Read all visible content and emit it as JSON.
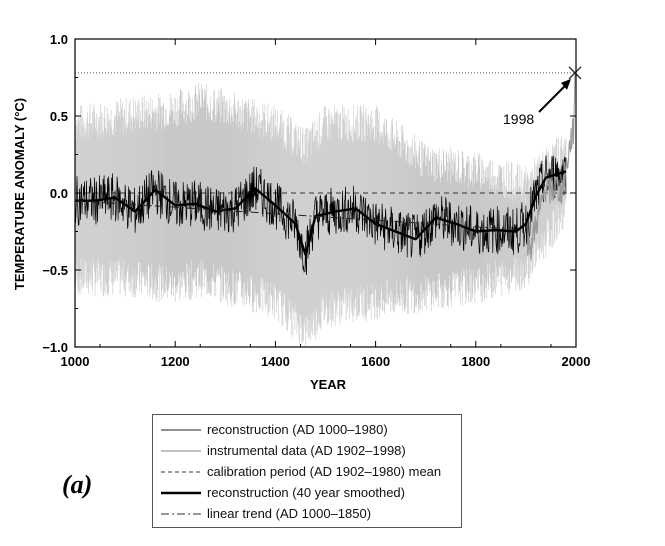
{
  "chart_data": {
    "type": "line",
    "xlabel": "YEAR",
    "ylabel": "TEMPERATURE ANOMALY (°C)",
    "xlim": [
      1000,
      2000
    ],
    "ylim": [
      -1.0,
      1.0
    ],
    "x_ticks": [
      1000,
      1200,
      1400,
      1600,
      1800,
      2000
    ],
    "x_tick_labels": [
      "1000",
      "1200",
      "1400",
      "1600",
      "1800",
      "2000"
    ],
    "y_ticks": [
      -1.0,
      -0.5,
      0.0,
      0.5,
      1.0
    ],
    "y_tick_labels": [
      "−1.0",
      "−0.5",
      "0.0",
      "0.5",
      "1.0"
    ],
    "annotations": [
      {
        "text": "1998",
        "x": 1998,
        "y": 0.78
      }
    ],
    "reference_level": 0.78,
    "calibration_mean": 0.0,
    "linear_trend": {
      "x": [
        1000,
        1850
      ],
      "y": [
        -0.05,
        -0.23
      ]
    },
    "smoothed_series": {
      "x": [
        1000,
        1040,
        1080,
        1120,
        1160,
        1200,
        1240,
        1280,
        1320,
        1360,
        1400,
        1440,
        1460,
        1480,
        1520,
        1560,
        1600,
        1640,
        1680,
        1720,
        1760,
        1800,
        1840,
        1880,
        1900,
        1920,
        1940,
        1960,
        1980
      ],
      "y": [
        -0.05,
        -0.05,
        -0.03,
        -0.12,
        0.02,
        -0.08,
        -0.07,
        -0.12,
        -0.1,
        0.03,
        -0.08,
        -0.2,
        -0.4,
        -0.15,
        -0.12,
        -0.1,
        -0.2,
        -0.25,
        -0.3,
        -0.16,
        -0.2,
        -0.25,
        -0.24,
        -0.25,
        -0.2,
        -0.02,
        0.1,
        0.12,
        0.14
      ]
    },
    "instrumental_series": {
      "x": [
        1902,
        1910,
        1920,
        1930,
        1940,
        1950,
        1960,
        1970,
        1980,
        1990,
        1995,
        1998
      ],
      "y": [
        -0.3,
        -0.35,
        -0.2,
        -0.1,
        0.05,
        0.0,
        0.05,
        0.0,
        0.15,
        0.35,
        0.4,
        0.78
      ]
    },
    "uncertainty_band": {
      "x": [
        1000,
        1100,
        1200,
        1250,
        1300,
        1400,
        1460,
        1500,
        1600,
        1700,
        1800,
        1900,
        1980
      ],
      "upper": [
        0.45,
        0.5,
        0.55,
        0.6,
        0.55,
        0.45,
        0.3,
        0.45,
        0.45,
        0.2,
        0.15,
        0.05,
        0.3
      ],
      "lower": [
        -0.55,
        -0.55,
        -0.6,
        -0.55,
        -0.6,
        -0.7,
        -0.9,
        -0.75,
        -0.7,
        -0.65,
        -0.6,
        -0.5,
        -0.1
      ]
    },
    "legend": [
      {
        "label": "reconstruction (AD 1000–1980)",
        "style": "thin-solid"
      },
      {
        "label": "instrumental data (AD 1902–1998)",
        "style": "gray-solid"
      },
      {
        "label": "calibration period (AD 1902–1980) mean",
        "style": "dashed"
      },
      {
        "label": "reconstruction (40 year smoothed)",
        "style": "thick-solid"
      },
      {
        "label": "linear trend (AD 1000–1850)",
        "style": "dash-dot"
      }
    ],
    "grid": false,
    "legend_placement": "bottom-center",
    "colors": {
      "reconstruction": "#000000",
      "instrumental": "#999999",
      "band": "#c8c8c8"
    }
  },
  "panel_label": "(a)"
}
